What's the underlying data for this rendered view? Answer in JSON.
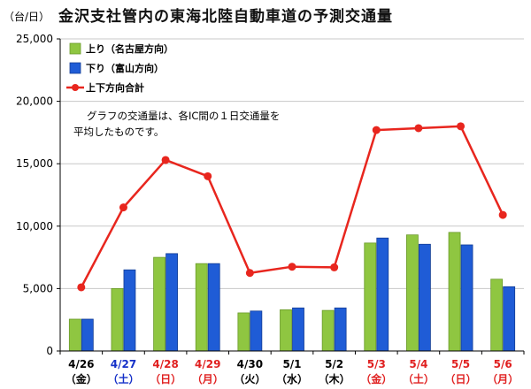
{
  "title": "金沢支社管内の東海北陸自動車道の予測交通量",
  "y_unit": "（台/日）",
  "note_lines": [
    "グラフの交通量は、各IC間の１日交通量を",
    "平均したものです。"
  ],
  "colors": {
    "up": "#8fc641",
    "down": "#1f5cd6",
    "total": "#e8261e",
    "weekday": "#000000",
    "saturday": "#1530c8",
    "holiday": "#e02020",
    "grid": "#c8c8c8"
  },
  "chart_data": {
    "type": "bar",
    "title": "金沢支社管内の東海北陸自動車道の予測交通量",
    "ylabel": "（台/日）",
    "ylim": [
      0,
      25000
    ],
    "y_ticks": [
      "0",
      "5,000",
      "10,000",
      "15,000",
      "20,000",
      "25,000"
    ],
    "grid": true,
    "legend_position": "top-left",
    "categories": [
      {
        "date": "4/26",
        "day": "（金）",
        "color": "weekday"
      },
      {
        "date": "4/27",
        "day": "（土）",
        "color": "saturday"
      },
      {
        "date": "4/28",
        "day": "（日）",
        "color": "holiday"
      },
      {
        "date": "4/29",
        "day": "（月）",
        "color": "holiday"
      },
      {
        "date": "4/30",
        "day": "（火）",
        "color": "weekday"
      },
      {
        "date": "5/1",
        "day": "（水）",
        "color": "weekday"
      },
      {
        "date": "5/2",
        "day": "（木）",
        "color": "weekday"
      },
      {
        "date": "5/3",
        "day": "（金）",
        "color": "holiday"
      },
      {
        "date": "5/4",
        "day": "（土）",
        "color": "holiday"
      },
      {
        "date": "5/5",
        "day": "（日）",
        "color": "holiday"
      },
      {
        "date": "5/6",
        "day": "（月）",
        "color": "holiday"
      }
    ],
    "series": [
      {
        "name": "上り（名古屋方向）",
        "type": "bar",
        "color": "up",
        "values": [
          2550,
          5000,
          7500,
          7000,
          3050,
          3300,
          3250,
          8650,
          9300,
          9500,
          5750
        ]
      },
      {
        "name": "下り（富山方向）",
        "type": "bar",
        "color": "down",
        "values": [
          2550,
          6500,
          7800,
          7000,
          3200,
          3450,
          3450,
          9050,
          8550,
          8500,
          5150
        ]
      },
      {
        "name": "上下方向合計",
        "type": "line",
        "color": "total",
        "values": [
          5100,
          11500,
          15300,
          14000,
          6250,
          6750,
          6700,
          17700,
          17850,
          18000,
          10900
        ]
      }
    ]
  }
}
